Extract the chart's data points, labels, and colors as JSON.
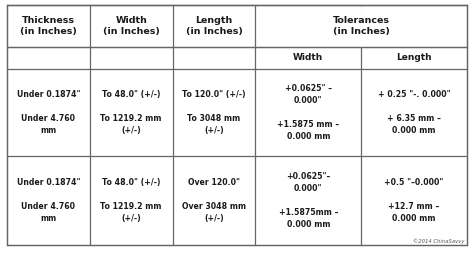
{
  "col_headers_row1": [
    "Thickness",
    "Width",
    "Length",
    "Tolerances"
  ],
  "col_headers_row2": [
    "(in Inches)",
    "(in Inches)",
    "(in Inches)",
    "(in Inches)"
  ],
  "sub_headers": [
    "Width",
    "Length"
  ],
  "rows": [
    {
      "thickness": "Under 0.1874\"\n\nUnder 4.760\nmm",
      "width": "To 48.0\" (+/-)\n\nTo 1219.2 mm\n(+/-)",
      "length": "To 120.0\" (+/-)\n\nTo 3048 mm\n(+/-)",
      "tol_width": "+0.0625\" –\n0.000\"\n\n+1.5875 mm –\n0.000 mm",
      "tol_length": "+ 0.25 \"-. 0.000\"\n\n+ 6.35 mm –\n0.000 mm"
    },
    {
      "thickness": "Under 0.1874\"\n\nUnder 4.760\nmm",
      "width": "To 48.0\" (+/-)\n\nTo 1219.2 mm\n(+/-)",
      "length": "Over 120.0\"\n\nOver 3048 mm\n(+/-)",
      "tol_width": "+0.0625\"–\n0.000\"\n\n+1.5875mm –\n0.000 mm",
      "tol_length": "+0.5 \"–0.000\"\n\n+12.7 mm –\n0.000 mm"
    }
  ],
  "background_color": "#ffffff",
  "border_color": "#666666",
  "text_color": "#1a1a1a",
  "copyright": "©2014 ChinaSavvy",
  "figsize": [
    4.74,
    2.57
  ],
  "dpi": 100
}
